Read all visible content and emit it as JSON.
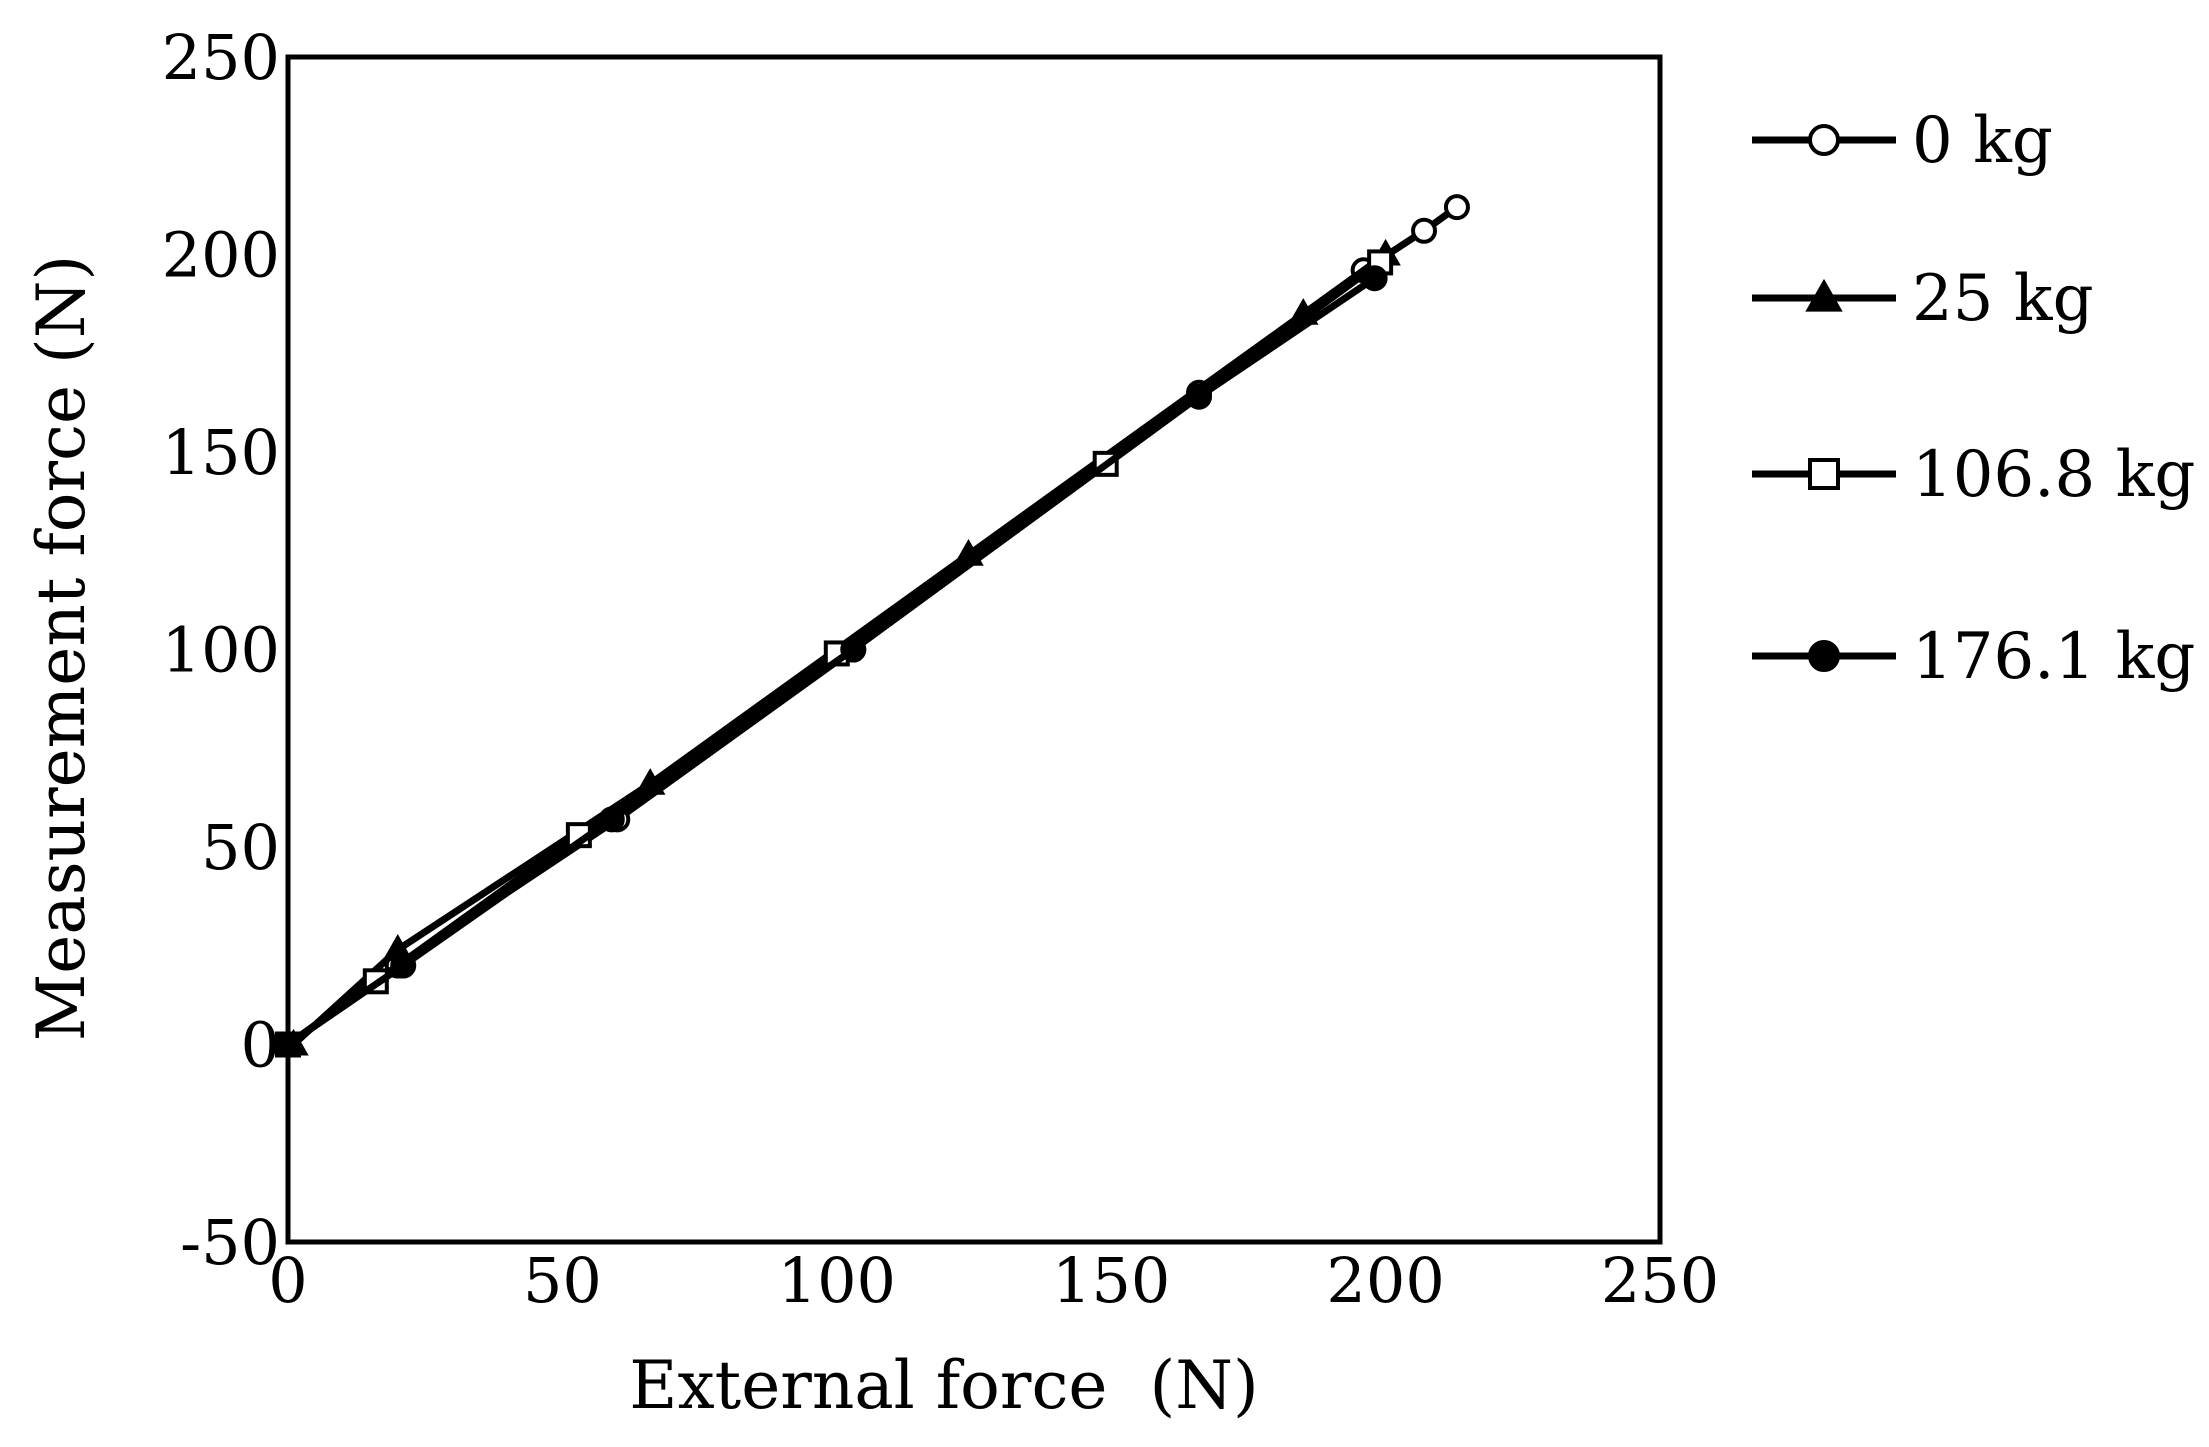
{
  "chart_data": {
    "type": "line",
    "title": "",
    "xlabel": "External force  (N)",
    "ylabel": "Measurement force (N)",
    "xlim": [
      0,
      250
    ],
    "ylim": [
      -50,
      250
    ],
    "x_ticks": [
      0,
      50,
      100,
      150,
      200,
      250
    ],
    "y_ticks": [
      -50,
      0,
      50,
      100,
      150,
      200,
      250
    ],
    "grid": false,
    "legend_position": "right",
    "line_color": "#000000",
    "series": [
      {
        "name": "0 kg",
        "marker": "circle-open",
        "points": [
          [
            0,
            0
          ],
          [
            20,
            20
          ],
          [
            60,
            57
          ],
          [
            103,
            100
          ],
          [
            166,
            165
          ],
          [
            196,
            196
          ],
          [
            207,
            206
          ],
          [
            213,
            212
          ]
        ]
      },
      {
        "name": "25 kg",
        "marker": "triangle-filled",
        "points": [
          [
            1,
            0
          ],
          [
            20,
            24
          ],
          [
            66,
            66
          ],
          [
            124,
            124
          ],
          [
            185,
            185
          ],
          [
            200,
            200
          ]
        ]
      },
      {
        "name": "106.8 kg",
        "marker": "square-open",
        "points": [
          [
            0,
            0
          ],
          [
            16,
            16
          ],
          [
            53,
            53
          ],
          [
            100,
            99
          ],
          [
            149,
            147
          ],
          [
            199,
            198
          ]
        ]
      },
      {
        "name": "176.1 kg",
        "marker": "circle-filled",
        "points": [
          [
            0,
            0
          ],
          [
            21,
            20
          ],
          [
            59,
            57
          ],
          [
            103,
            100
          ],
          [
            166,
            164
          ],
          [
            198,
            194
          ]
        ]
      }
    ]
  }
}
